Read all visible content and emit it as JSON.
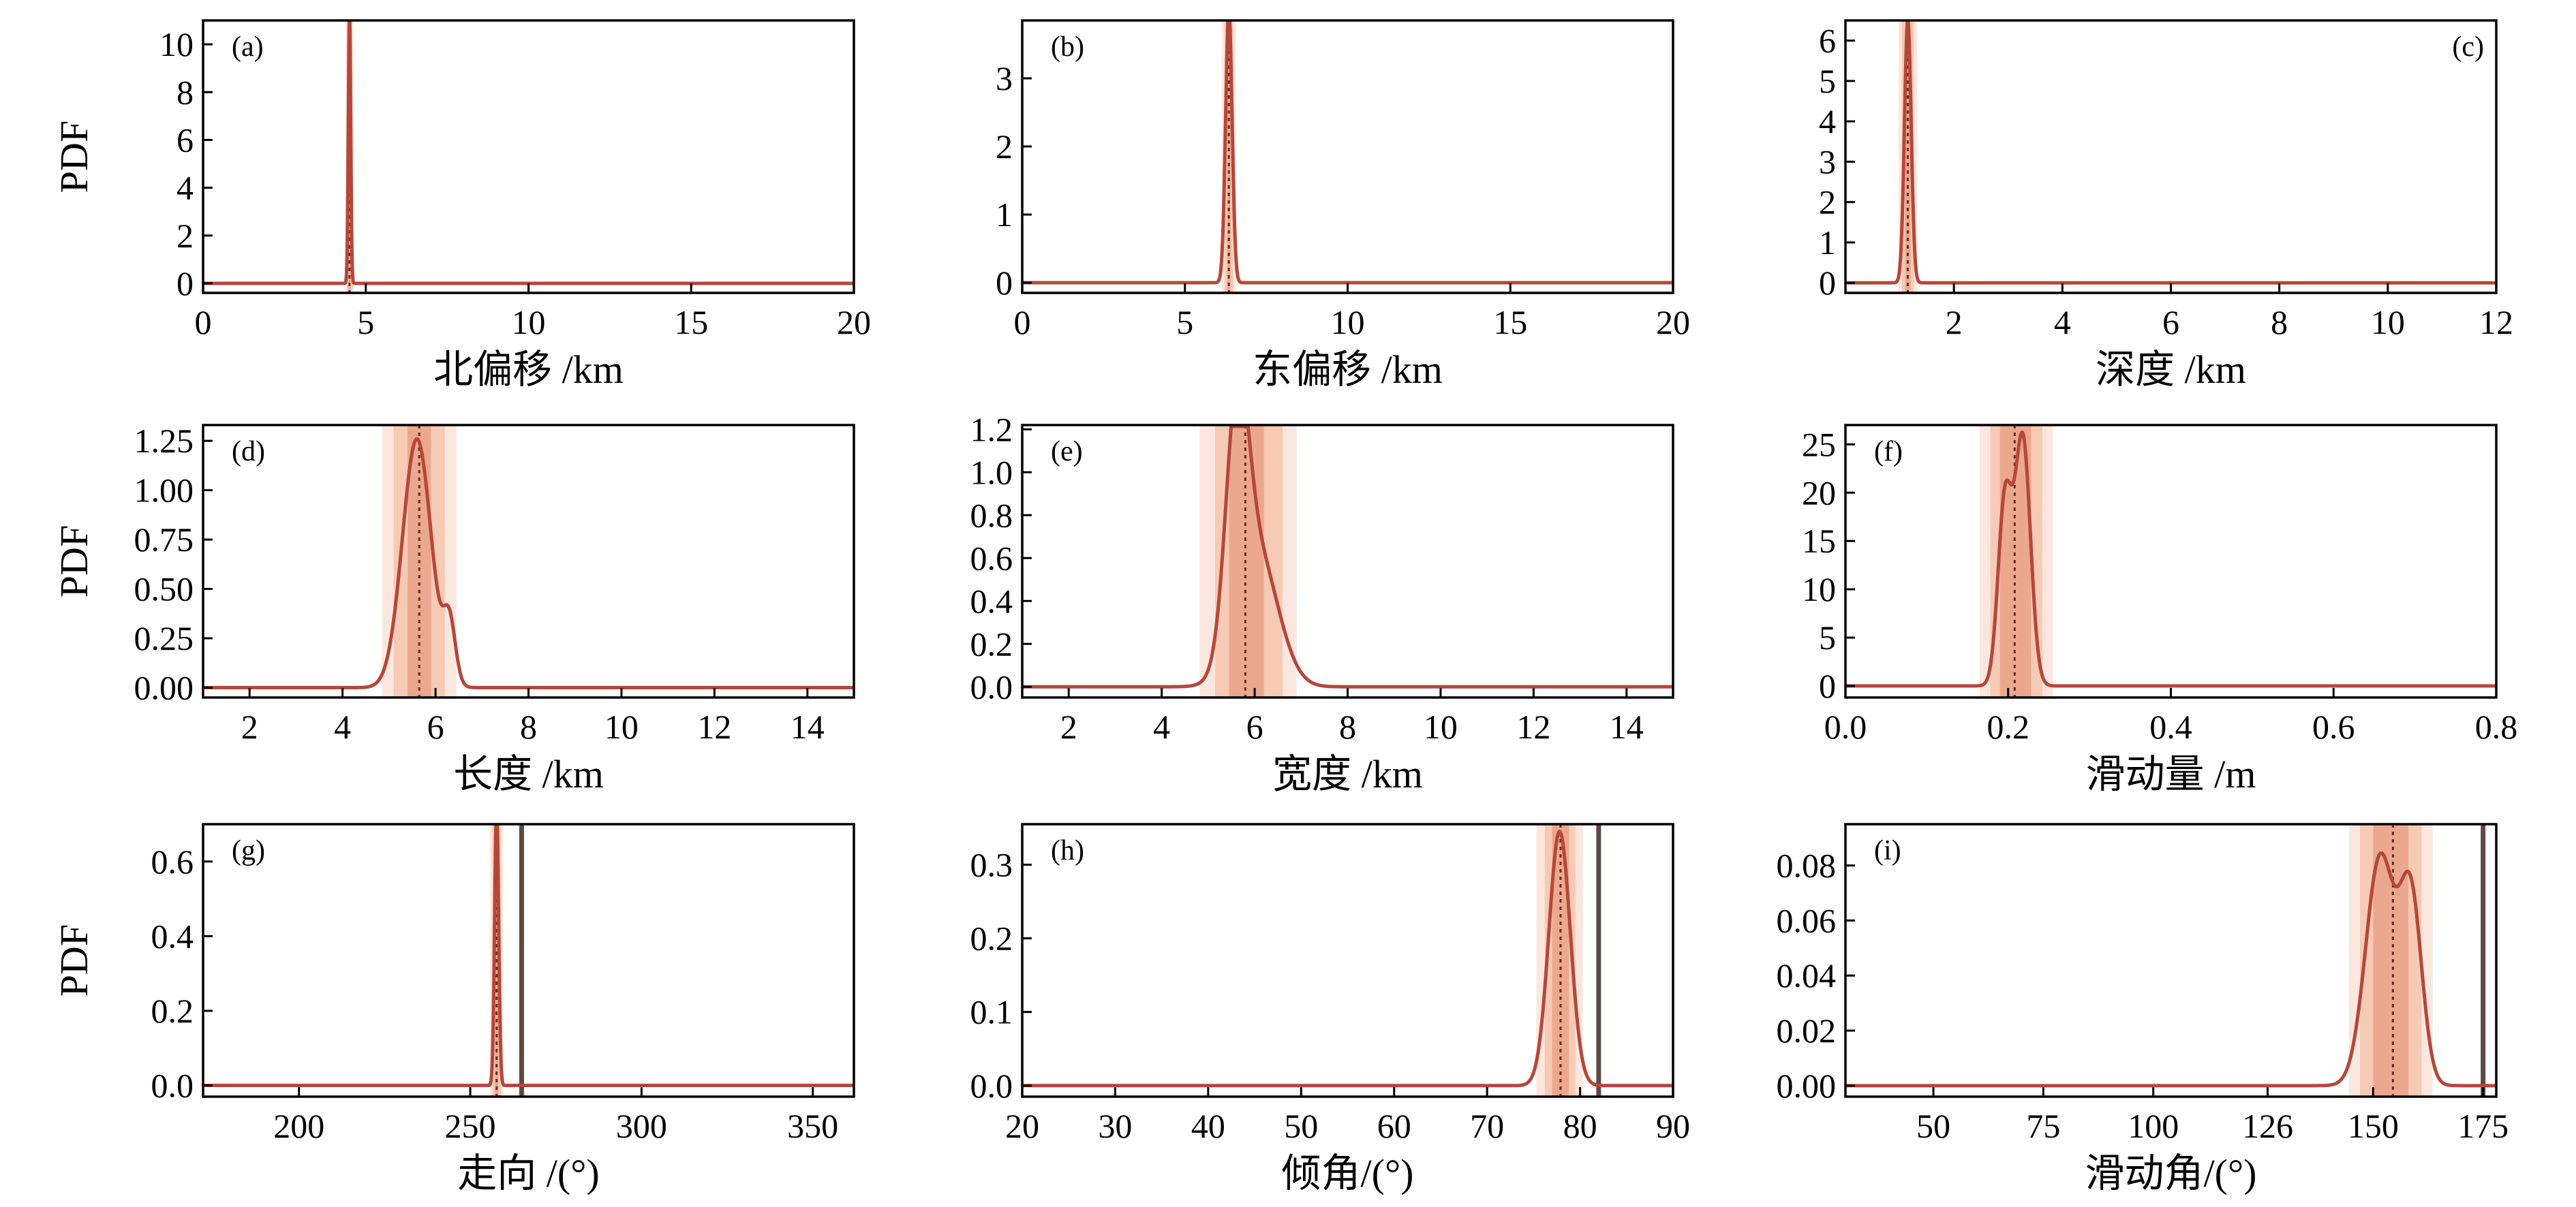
{
  "figure": {
    "ylabel_text": "PDF",
    "colors": {
      "curve": "#b5473a",
      "band_outer": "#fbe3d8",
      "band_mid": "#f4c4ad",
      "band_inner": "#eaa287",
      "reference_line": "#5e4a44",
      "median_line": "#6b2a20"
    }
  },
  "chart_data": [
    {
      "type": "line",
      "panel": "(a)",
      "xlabel": "北偏移 /km",
      "ylabel": "PDF",
      "xlim": [
        0,
        20
      ],
      "ylim": [
        -0.4,
        11
      ],
      "xticks": [
        0,
        5,
        10,
        15,
        20
      ],
      "xtick_labels": [
        "0",
        "5",
        "10",
        "15",
        "20"
      ],
      "yticks": [
        0,
        2,
        4,
        6,
        8,
        10
      ],
      "ytick_labels": [
        "0",
        "2",
        "4",
        "6",
        "8",
        "10"
      ],
      "components": [
        {
          "mu": 4.5,
          "sigma": 0.036,
          "amp": 11.5
        }
      ],
      "median": 4.5,
      "bands": [
        4.38,
        4.43,
        4.47,
        4.53,
        4.57,
        4.62
      ],
      "reference_line": null,
      "panel_label_pos": "top-left"
    },
    {
      "type": "line",
      "panel": "(b)",
      "xlabel": "东偏移 /km",
      "ylabel": "",
      "xlim": [
        0,
        20
      ],
      "ylim": [
        -0.15,
        3.85
      ],
      "xticks": [
        0,
        5,
        10,
        15,
        20
      ],
      "xtick_labels": [
        "0",
        "5",
        "10",
        "15",
        "20"
      ],
      "yticks": [
        0,
        1,
        2,
        3
      ],
      "ytick_labels": [
        "0",
        "1",
        "2",
        "3"
      ],
      "components": [
        {
          "mu": 6.35,
          "sigma": 0.1,
          "amp": 4.0
        }
      ],
      "median": 6.35,
      "bands": [
        6.13,
        6.22,
        6.3,
        6.4,
        6.48,
        6.57
      ],
      "reference_line": null,
      "panel_label_pos": "top-left"
    },
    {
      "type": "line",
      "panel": "(c)",
      "xlabel": "深度 /km",
      "ylabel": "",
      "xlim": [
        0,
        12
      ],
      "ylim": [
        -0.25,
        6.5
      ],
      "xticks": [
        2,
        4,
        6,
        8,
        10,
        12
      ],
      "xtick_labels": [
        "2",
        "4",
        "6",
        "8",
        "10",
        "12"
      ],
      "yticks": [
        0,
        1,
        2,
        3,
        4,
        5,
        6
      ],
      "ytick_labels": [
        "0",
        "1",
        "2",
        "3",
        "4",
        "5",
        "6"
      ],
      "components": [
        {
          "mu": 1.15,
          "sigma": 0.062,
          "amp": 6.5
        }
      ],
      "median": 1.15,
      "bands": [
        0.98,
        1.04,
        1.1,
        1.2,
        1.26,
        1.32
      ],
      "reference_line": null,
      "panel_label_pos": "top-right"
    },
    {
      "type": "line",
      "panel": "(d)",
      "xlabel": "长度 /km",
      "ylabel": "PDF",
      "xlim": [
        1,
        15
      ],
      "ylim": [
        -0.05,
        1.33
      ],
      "xticks": [
        2,
        4,
        6,
        8,
        10,
        12,
        14
      ],
      "xtick_labels": [
        "2",
        "4",
        "6",
        "8",
        "10",
        "12",
        "14"
      ],
      "yticks": [
        0,
        0.25,
        0.5,
        0.75,
        1.0,
        1.25
      ],
      "ytick_labels": [
        "0.00",
        "0.25",
        "0.50",
        "0.75",
        "1.00",
        "1.25"
      ],
      "components": [
        {
          "mu": 5.6,
          "sigma": 0.31,
          "amp": 1.26
        },
        {
          "mu": 6.3,
          "sigma": 0.13,
          "amp": 0.3
        }
      ],
      "median": 5.65,
      "bands": [
        4.85,
        5.1,
        5.4,
        5.9,
        6.2,
        6.45
      ],
      "reference_line": null,
      "panel_label_pos": "top-left"
    },
    {
      "type": "line",
      "panel": "(e)",
      "xlabel": "宽度 /km",
      "ylabel": "",
      "xlim": [
        1,
        15
      ],
      "ylim": [
        -0.05,
        1.22
      ],
      "xticks": [
        2,
        4,
        6,
        8,
        10,
        12,
        14
      ],
      "xtick_labels": [
        "2",
        "4",
        "6",
        "8",
        "10",
        "12",
        "14"
      ],
      "yticks": [
        0,
        0.2,
        0.4,
        0.6,
        0.8,
        1.0,
        1.2
      ],
      "ytick_labels": [
        "0.0",
        "0.2",
        "0.4",
        "0.6",
        "0.8",
        "1.0",
        "1.2"
      ],
      "components": [
        {
          "mu": 5.62,
          "sigma": 0.24,
          "amp": 1.06
        },
        {
          "mu": 6.05,
          "sigma": 0.45,
          "amp": 0.62
        }
      ],
      "median": 5.8,
      "bands": [
        4.82,
        5.15,
        5.45,
        6.2,
        6.6,
        6.9
      ],
      "reference_line": null,
      "panel_label_pos": "top-left"
    },
    {
      "type": "line",
      "panel": "(f)",
      "xlabel": "滑动量 /m",
      "ylabel": "",
      "xlim": [
        0,
        0.8
      ],
      "ylim": [
        -1.2,
        27
      ],
      "xticks": [
        0,
        0.2,
        0.4,
        0.6,
        0.8
      ],
      "xtick_labels": [
        "0.0",
        "0.2",
        "0.4",
        "0.6",
        "0.8"
      ],
      "yticks": [
        0,
        5,
        10,
        15,
        20,
        25
      ],
      "ytick_labels": [
        "0",
        "5",
        "10",
        "15",
        "20",
        "25"
      ],
      "components": [
        {
          "mu": 0.196,
          "sigma": 0.0085,
          "amp": 19
        },
        {
          "mu": 0.218,
          "sigma": 0.0095,
          "amp": 25.5
        }
      ],
      "median": 0.208,
      "bands": [
        0.165,
        0.178,
        0.19,
        0.228,
        0.242,
        0.255
      ],
      "reference_line": null,
      "panel_label_pos": "top-left"
    },
    {
      "type": "line",
      "panel": "(g)",
      "xlabel": "走向 /(°)",
      "ylabel": "PDF",
      "xlim": [
        172,
        362
      ],
      "ylim": [
        -0.03,
        0.7
      ],
      "xticks": [
        200,
        250,
        300,
        350
      ],
      "xtick_labels": [
        "200",
        "250",
        "300",
        "350"
      ],
      "yticks": [
        0,
        0.2,
        0.4,
        0.6
      ],
      "ytick_labels": [
        "0.0",
        "0.2",
        "0.4",
        "0.6"
      ],
      "components": [
        {
          "mu": 257.7,
          "sigma": 0.58,
          "amp": 0.75
        }
      ],
      "median": 257.7,
      "bands": [
        255.8,
        256.5,
        257.2,
        258.2,
        258.9,
        259.6
      ],
      "reference_line": 265,
      "panel_label_pos": "top-left"
    },
    {
      "type": "line",
      "panel": "(h)",
      "xlabel": "倾角/(°)",
      "ylabel": "",
      "xlim": [
        20,
        90
      ],
      "ylim": [
        -0.015,
        0.355
      ],
      "xticks": [
        20,
        30,
        40,
        50,
        60,
        70,
        80,
        90
      ],
      "xtick_labels": [
        "20",
        "30",
        "40",
        "50",
        "60",
        "70",
        "80",
        "90"
      ],
      "yticks": [
        0,
        0.1,
        0.2,
        0.3
      ],
      "ytick_labels": [
        "0.0",
        "0.1",
        "0.2",
        "0.3"
      ],
      "components": [
        {
          "mu": 77.8,
          "sigma": 1.15,
          "amp": 0.345
        }
      ],
      "median": 77.9,
      "bands": [
        75.3,
        76.2,
        77.0,
        78.8,
        79.5,
        80.3
      ],
      "reference_line": 82,
      "panel_label_pos": "top-left"
    },
    {
      "type": "line",
      "panel": "(i)",
      "xlabel": "滑动角/(°)",
      "ylabel": "",
      "xlim": [
        30,
        178
      ],
      "ylim": [
        -0.004,
        0.095
      ],
      "xticks": [
        50,
        75,
        100,
        126,
        150,
        175
      ],
      "xtick_labels": [
        "50",
        "75",
        "100",
        "126",
        "150",
        "175"
      ],
      "yticks": [
        0,
        0.02,
        0.04,
        0.06,
        0.08
      ],
      "ytick_labels": [
        "0.00",
        "0.02",
        "0.04",
        "0.06",
        "0.08"
      ],
      "components": [
        {
          "mu": 151.6,
          "sigma": 3.3,
          "amp": 0.083
        },
        {
          "mu": 158.6,
          "sigma": 2.5,
          "amp": 0.067
        }
      ],
      "median": 154.5,
      "bands": [
        144.5,
        147.0,
        150.0,
        158.0,
        161.0,
        163.5
      ],
      "reference_line": 175,
      "panel_label_pos": "top-left"
    }
  ]
}
